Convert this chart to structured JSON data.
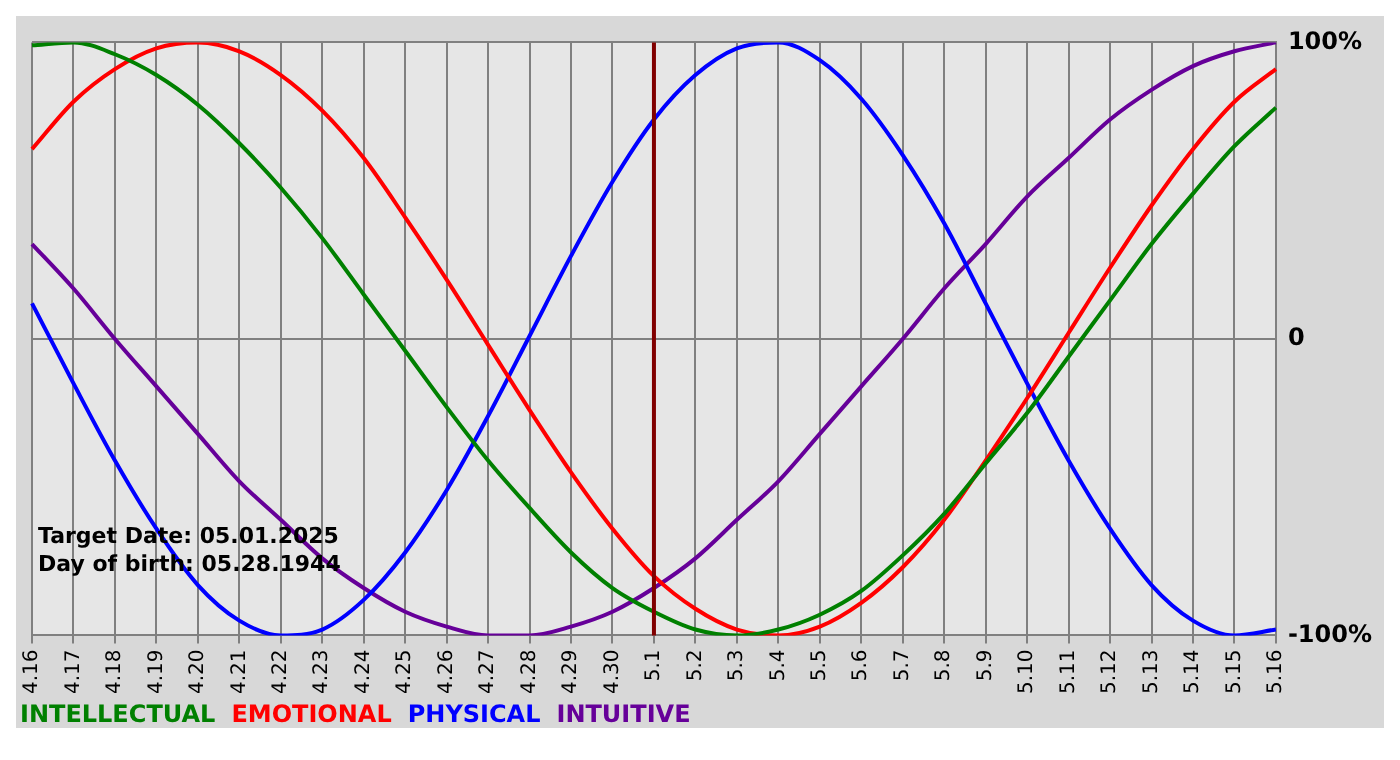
{
  "chart_data": {
    "type": "line",
    "categories": [
      "4.16",
      "4.17",
      "4.18",
      "4.19",
      "4.20",
      "4.21",
      "4.22",
      "4.23",
      "4.24",
      "4.25",
      "4.26",
      "4.27",
      "4.28",
      "4.29",
      "4.30",
      "5.1",
      "5.2",
      "5.3",
      "5.4",
      "5.5",
      "5.6",
      "5.7",
      "5.8",
      "5.9",
      "5.10",
      "5.11",
      "5.12",
      "5.13",
      "5.14",
      "5.15",
      "5.16"
    ],
    "series": [
      {
        "name": "INTELLECTUAL",
        "color": "#008000",
        "values": [
          99,
          100,
          96,
          89,
          79,
          66,
          51,
          34,
          15,
          -4,
          -23,
          -41,
          -57,
          -72,
          -84,
          -92,
          -98,
          -100,
          -98,
          -93,
          -85,
          -73,
          -59,
          -42,
          -25,
          -6,
          13,
          32,
          49,
          65,
          78
        ]
      },
      {
        "name": "EMOTIONAL",
        "color": "#ff0000",
        "values": [
          64,
          80,
          91,
          98,
          100,
          97,
          89,
          77,
          61,
          41,
          20,
          -2,
          -24,
          -45,
          -64,
          -80,
          -91,
          -98,
          -100,
          -97,
          -89,
          -77,
          -61,
          -41,
          -20,
          2,
          24,
          45,
          64,
          80,
          91
        ]
      },
      {
        "name": "PHYSICAL",
        "color": "#0000ff",
        "values": [
          12,
          -15,
          -41,
          -64,
          -83,
          -95,
          -100,
          -98,
          -88,
          -72,
          -51,
          -26,
          1,
          28,
          53,
          74,
          89,
          98,
          100,
          94,
          81,
          62,
          39,
          12,
          -15,
          -41,
          -64,
          -83,
          -95,
          -100,
          -98
        ]
      },
      {
        "name": "INTUITIVE",
        "color": "#660099",
        "values": [
          32,
          17,
          0,
          -16,
          -32,
          -48,
          -61,
          -74,
          -84,
          -92,
          -97,
          -100,
          -100,
          -97,
          -92,
          -84,
          -74,
          -61,
          -48,
          -32,
          -16,
          0,
          17,
          32,
          48,
          61,
          74,
          84,
          92,
          97,
          100
        ]
      }
    ],
    "ylim": [
      -100,
      100
    ],
    "yticks": [
      {
        "value": 100,
        "label": "100%"
      },
      0,
      {
        "value": -100,
        "label": "-100%"
      }
    ],
    "grid": true,
    "legend": "bottom",
    "marker": "none",
    "line_style": "solid",
    "ref_lines": [
      {
        "axis": "x",
        "value": "5.1",
        "color": "#800000"
      }
    ],
    "annotations": [
      "Target Date: 05.01.2025",
      "Day of birth: 05.28.1944"
    ]
  }
}
